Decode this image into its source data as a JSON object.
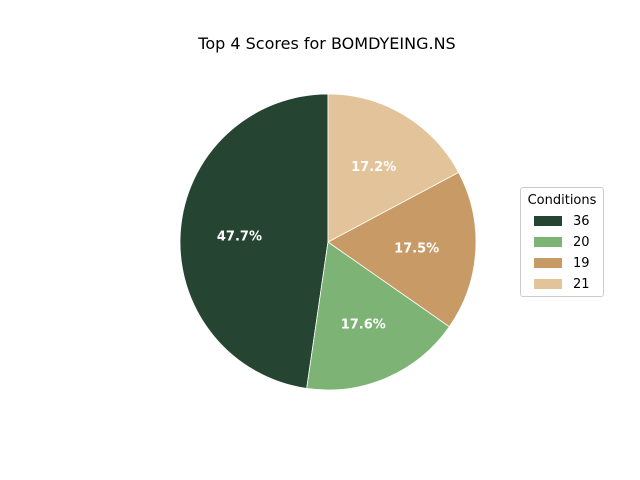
{
  "chart_data": {
    "type": "pie",
    "title": "Top 4 Scores for BOMDYEING.NS",
    "legend_title": "Conditions",
    "legend_position": "right",
    "slices": [
      {
        "label": "36",
        "value": 47.7,
        "pct_label": "47.7%",
        "color": "#254432"
      },
      {
        "label": "20",
        "value": 17.6,
        "pct_label": "17.6%",
        "color": "#7db375"
      },
      {
        "label": "19",
        "value": 17.5,
        "pct_label": "17.5%",
        "color": "#c89b66"
      },
      {
        "label": "21",
        "value": 17.2,
        "pct_label": "17.2%",
        "color": "#e3c39a"
      }
    ],
    "start_angle_deg": 90,
    "direction": "counterclockwise"
  }
}
